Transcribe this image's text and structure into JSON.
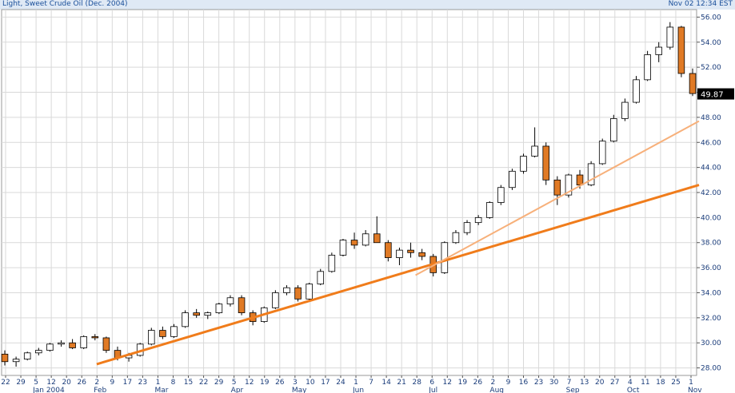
{
  "header": {
    "title": "Light, Sweet Crude Oil (Dec. 2004)",
    "timestamp": "Nov 02 12:34 EST"
  },
  "colors": {
    "up_fill": "#ffffff",
    "down_fill": "#e07a25",
    "candle_edge": "#000000",
    "trend_main": "#f07c1b",
    "trend_secondary": "#f7b07a",
    "grid": "#d9d9d9",
    "label_text": "#1a3c7a",
    "last_price_bg": "#000000"
  },
  "chart_data": {
    "type": "candlestick",
    "title": "Light, Sweet Crude Oil (Dec. 2004)",
    "ylim": [
      27.4,
      56.6
    ],
    "y_ticks": [
      "28.00",
      "30.00",
      "32.00",
      "34.00",
      "36.00",
      "38.00",
      "40.00",
      "42.00",
      "44.00",
      "46.00",
      "48.00",
      "50.00",
      "52.00",
      "54.00",
      "56.00"
    ],
    "last_price": "49.87",
    "x_day_ticks": [
      "22",
      "29",
      "5",
      "12",
      "20",
      "26",
      "2",
      "9",
      "17",
      "23",
      "1",
      "8",
      "15",
      "22",
      "29",
      "5",
      "12",
      "19",
      "26",
      "3",
      "10",
      "17",
      "24",
      "1",
      "7",
      "14",
      "21",
      "28",
      "6",
      "12",
      "19",
      "26",
      "2",
      "9",
      "16",
      "23",
      "30",
      "7",
      "13",
      "20",
      "27",
      "4",
      "11",
      "18",
      "25",
      "1"
    ],
    "x_month_labels": [
      "Jan 2004",
      "Feb",
      "Mar",
      "Apr",
      "May",
      "Jun",
      "Jul",
      "Aug",
      "Sep",
      "Oct",
      "Nov"
    ],
    "candles_approx": [
      [
        29.1,
        29.4,
        28.2,
        28.5
      ],
      [
        28.5,
        28.9,
        28.1,
        28.7
      ],
      [
        28.7,
        29.3,
        28.6,
        29.2
      ],
      [
        29.2,
        29.6,
        29.0,
        29.4
      ],
      [
        29.4,
        30.0,
        29.3,
        29.9
      ],
      [
        29.9,
        30.2,
        29.7,
        30.0
      ],
      [
        30.0,
        30.3,
        29.5,
        29.6
      ],
      [
        29.6,
        30.6,
        29.5,
        30.5
      ],
      [
        30.5,
        30.7,
        30.2,
        30.4
      ],
      [
        30.4,
        30.5,
        29.2,
        29.4
      ],
      [
        29.4,
        29.7,
        28.6,
        28.8
      ],
      [
        28.8,
        29.2,
        28.5,
        29.0
      ],
      [
        29.0,
        30.0,
        28.9,
        29.9
      ],
      [
        29.9,
        31.2,
        29.8,
        31.0
      ],
      [
        31.0,
        31.3,
        30.3,
        30.5
      ],
      [
        30.5,
        31.5,
        30.4,
        31.3
      ],
      [
        31.3,
        32.6,
        31.2,
        32.4
      ],
      [
        32.4,
        32.7,
        32.0,
        32.2
      ],
      [
        32.2,
        32.5,
        31.9,
        32.4
      ],
      [
        32.4,
        33.2,
        32.3,
        33.1
      ],
      [
        33.1,
        33.8,
        32.9,
        33.6
      ],
      [
        33.6,
        33.8,
        32.2,
        32.4
      ],
      [
        32.4,
        32.6,
        31.4,
        31.7
      ],
      [
        31.7,
        32.9,
        31.6,
        32.8
      ],
      [
        32.8,
        34.2,
        32.7,
        34.0
      ],
      [
        34.0,
        34.6,
        33.8,
        34.4
      ],
      [
        34.4,
        34.6,
        33.3,
        33.5
      ],
      [
        33.5,
        34.8,
        33.4,
        34.7
      ],
      [
        34.7,
        35.9,
        34.6,
        35.7
      ],
      [
        35.7,
        37.2,
        35.6,
        37.0
      ],
      [
        37.0,
        38.3,
        36.9,
        38.2
      ],
      [
        38.2,
        38.8,
        37.5,
        37.8
      ],
      [
        37.8,
        39.0,
        37.7,
        38.7
      ],
      [
        38.7,
        40.1,
        38.5,
        38.0
      ],
      [
        38.0,
        38.2,
        36.5,
        36.8
      ],
      [
        36.8,
        37.6,
        36.2,
        37.4
      ],
      [
        37.4,
        38.0,
        36.8,
        37.2
      ],
      [
        37.2,
        37.5,
        36.6,
        36.9
      ],
      [
        36.9,
        37.1,
        35.3,
        35.6
      ],
      [
        35.6,
        38.1,
        35.5,
        38.0
      ],
      [
        38.0,
        39.0,
        37.9,
        38.8
      ],
      [
        38.8,
        39.8,
        38.6,
        39.6
      ],
      [
        39.6,
        40.2,
        39.4,
        40.0
      ],
      [
        40.0,
        41.3,
        39.9,
        41.2
      ],
      [
        41.2,
        42.6,
        41.0,
        42.4
      ],
      [
        42.4,
        43.9,
        42.2,
        43.7
      ],
      [
        43.7,
        45.1,
        43.5,
        44.9
      ],
      [
        44.9,
        47.2,
        44.8,
        45.7
      ],
      [
        45.7,
        46.0,
        42.6,
        43.0
      ],
      [
        43.0,
        43.3,
        41.0,
        41.8
      ],
      [
        41.8,
        43.5,
        41.6,
        43.4
      ],
      [
        43.4,
        43.8,
        42.3,
        42.6
      ],
      [
        42.6,
        44.5,
        42.5,
        44.3
      ],
      [
        44.3,
        46.3,
        44.2,
        46.1
      ],
      [
        46.1,
        48.2,
        46.0,
        47.9
      ],
      [
        47.9,
        49.5,
        47.7,
        49.2
      ],
      [
        49.2,
        51.3,
        49.1,
        51.0
      ],
      [
        51.0,
        53.3,
        50.9,
        53.0
      ],
      [
        53.0,
        54.0,
        52.4,
        53.6
      ],
      [
        53.6,
        55.6,
        53.4,
        55.2
      ],
      [
        55.2,
        55.3,
        51.2,
        51.5
      ],
      [
        51.5,
        51.9,
        49.7,
        49.9
      ]
    ],
    "trendlines": [
      {
        "from": [
          "2004-02-02",
          28.3
        ],
        "to": [
          "2004-11-02",
          42.6
        ]
      },
      {
        "from": [
          "2004-06-28",
          35.4
        ],
        "to": [
          "2004-11-02",
          47.7
        ]
      }
    ]
  }
}
